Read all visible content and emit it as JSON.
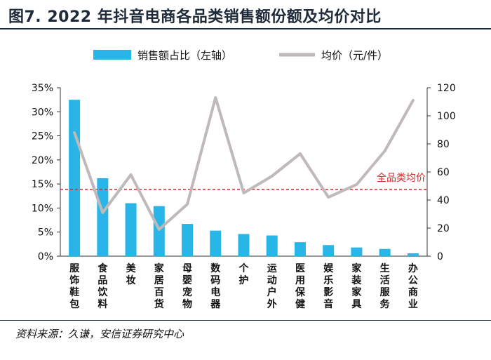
{
  "page": {
    "title": "图7. 2022 年抖音电商各品类销售额份额及均价对比",
    "source": "资料来源：久谦，安信证券研究中心"
  },
  "chart_data": {
    "type": "bar",
    "categories": [
      "服饰鞋包",
      "食品饮料",
      "美妆",
      "家居百货",
      "母婴宠物",
      "数码电器",
      "个护",
      "运动户外",
      "医用保健",
      "娱乐影音",
      "家装家具",
      "生活服务",
      "办公商业"
    ],
    "series": [
      {
        "name": "销售额占比（左轴）",
        "type": "bar",
        "axis": "left",
        "color": "#29b5e8",
        "values": [
          32.5,
          16.2,
          11.0,
          10.4,
          6.7,
          5.3,
          4.6,
          4.3,
          2.9,
          2.3,
          1.8,
          1.5,
          0.6
        ]
      },
      {
        "name": "均价（元/件）",
        "type": "line",
        "axis": "right",
        "color": "#bfb9b9",
        "values": [
          88,
          31,
          58,
          19,
          37,
          113,
          45,
          57,
          73,
          42,
          51,
          75,
          111
        ]
      }
    ],
    "y_left": {
      "ticks": [
        "0%",
        "5%",
        "10%",
        "15%",
        "20%",
        "25%",
        "30%",
        "35%"
      ],
      "min": 0,
      "max": 35
    },
    "y_right": {
      "ticks": [
        "0",
        "20",
        "40",
        "60",
        "80",
        "100",
        "120"
      ],
      "min": 0,
      "max": 120
    },
    "reference_line": {
      "label": "全品类均价",
      "value": 47.5,
      "axis": "right",
      "color": "#d42a2a"
    },
    "legend_position": "top-center",
    "grid": false
  }
}
